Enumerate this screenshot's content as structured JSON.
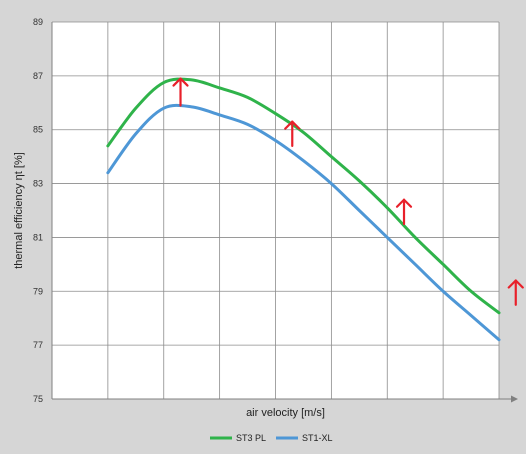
{
  "chart_data": {
    "type": "line",
    "title": "",
    "xlabel": "air velocity [m/s]",
    "ylabel": "thermal efficiency ηt [%]",
    "ylim": [
      75,
      89
    ],
    "yticks": [
      "75",
      "77",
      "79",
      "81",
      "83",
      "85",
      "87",
      "89"
    ],
    "xlim": [
      0,
      8
    ],
    "x_tick_labels_shown": false,
    "grid": true,
    "legend_position": "bottom-center",
    "x": [
      1,
      1.5,
      2,
      2.5,
      3,
      3.5,
      4,
      4.5,
      5,
      5.5,
      6,
      6.5,
      7,
      7.5,
      8
    ],
    "series": [
      {
        "name": "ST3 PL",
        "color": "#2fb34a",
        "values": [
          84.4,
          85.8,
          86.75,
          86.85,
          86.55,
          86.2,
          85.6,
          84.9,
          84.0,
          83.1,
          82.1,
          81.0,
          80.0,
          79.0,
          78.2
        ]
      },
      {
        "name": "ST1-XL",
        "color": "#4e97d6",
        "values": [
          83.4,
          84.85,
          85.8,
          85.85,
          85.55,
          85.2,
          84.6,
          83.85,
          83.0,
          82.0,
          81.0,
          80.0,
          79.0,
          78.1,
          77.2
        ]
      }
    ],
    "annotations": [
      {
        "type": "arrow",
        "color": "#e8202a",
        "x": 2.3,
        "from": 85.9,
        "to": 86.9
      },
      {
        "type": "arrow",
        "color": "#e8202a",
        "x": 4.3,
        "from": 84.4,
        "to": 85.3
      },
      {
        "type": "arrow",
        "color": "#e8202a",
        "x": 6.3,
        "from": 81.5,
        "to": 82.4
      },
      {
        "type": "arrow",
        "color": "#e8202a",
        "x": 8.3,
        "from": 78.5,
        "to": 79.4
      }
    ]
  },
  "colors": {
    "background": "#d6d6d6",
    "plot_area": "#ffffff",
    "grid": "#8c8c8c",
    "axis": "#808080",
    "arrow": "#e8202a"
  }
}
